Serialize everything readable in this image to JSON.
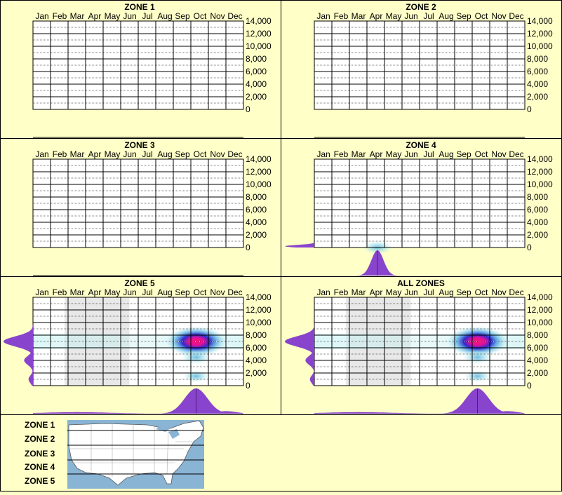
{
  "months": [
    "Jan",
    "Feb",
    "Mar",
    "Apr",
    "May",
    "Jun",
    "Jul",
    "Aug",
    "Sep",
    "Oct",
    "Nov",
    "Dec"
  ],
  "y_ticks": [
    "14,000",
    "12,000",
    "10,000",
    "8,000",
    "6,000",
    "4,000",
    "2,000",
    "0"
  ],
  "colors": {
    "background": "#ffffc8",
    "grid": "#000000",
    "density": "#8844cc",
    "heat_low": "#bfeff0",
    "heat_mid": "#2222cc",
    "heat_high": "#ff1177",
    "shaded_months": "#e8e8e8",
    "map_water": "#8ab4d4",
    "map_land": "#ffffff"
  },
  "legend": {
    "zone_labels": [
      "ZONE 1",
      "ZONE 2",
      "ZONE 3",
      "ZONE 4",
      "ZONE 5"
    ],
    "map_icon": "usa-zone-map"
  },
  "chart_data": [
    {
      "type": "heatmap",
      "title": "ZONE 1",
      "x_categories": [
        "Jan",
        "Feb",
        "Mar",
        "Apr",
        "May",
        "Jun",
        "Jul",
        "Aug",
        "Sep",
        "Oct",
        "Nov",
        "Dec"
      ],
      "ylim": [
        0,
        14000
      ],
      "hotspots": [],
      "shaded_months": [],
      "month_density": [],
      "elevation_density": []
    },
    {
      "type": "heatmap",
      "title": "ZONE 2",
      "x_categories": [
        "Jan",
        "Feb",
        "Mar",
        "Apr",
        "May",
        "Jun",
        "Jul",
        "Aug",
        "Sep",
        "Oct",
        "Nov",
        "Dec"
      ],
      "ylim": [
        0,
        14000
      ],
      "hotspots": [],
      "shaded_months": [],
      "month_density": [],
      "elevation_density": []
    },
    {
      "type": "heatmap",
      "title": "ZONE 3",
      "x_categories": [
        "Jan",
        "Feb",
        "Mar",
        "Apr",
        "May",
        "Jun",
        "Jul",
        "Aug",
        "Sep",
        "Oct",
        "Nov",
        "Dec"
      ],
      "ylim": [
        0,
        14000
      ],
      "hotspots": [],
      "shaded_months": [],
      "month_density": [],
      "elevation_density": []
    },
    {
      "type": "heatmap",
      "title": "ZONE 4",
      "x_categories": [
        "Jan",
        "Feb",
        "Mar",
        "Apr",
        "May",
        "Jun",
        "Jul",
        "Aug",
        "Sep",
        "Oct",
        "Nov",
        "Dec"
      ],
      "ylim": [
        0,
        14000
      ],
      "hotspots": [
        {
          "month": 4.1,
          "elev": 0,
          "intensity": 0.35
        }
      ],
      "shaded_months": [],
      "month_density": [
        {
          "month": 4.1,
          "value": 1.0,
          "spread": 0.35
        }
      ],
      "elevation_density": [
        {
          "elev": 200,
          "value": 1.0,
          "spread": 200
        }
      ]
    },
    {
      "type": "heatmap",
      "title": "ZONE 5",
      "x_categories": [
        "Jan",
        "Feb",
        "Mar",
        "Apr",
        "May",
        "Jun",
        "Jul",
        "Aug",
        "Sep",
        "Oct",
        "Nov",
        "Dec"
      ],
      "ylim": [
        0,
        14000
      ],
      "hotspots": [
        {
          "month": 9.8,
          "elev": 7000,
          "intensity": 1.0
        },
        {
          "month": 9.8,
          "elev": 4500,
          "intensity": 0.35
        },
        {
          "month": 9.8,
          "elev": 1500,
          "intensity": 0.25
        }
      ],
      "shaded_months": [
        [
          2.3,
          6.0
        ]
      ],
      "month_density": [
        {
          "month": 9.8,
          "value": 1.0,
          "spread": 0.65
        },
        {
          "month": 3.0,
          "value": 0.06,
          "spread": 2.0
        },
        {
          "month": 11.5,
          "value": 0.1,
          "spread": 0.6
        }
      ],
      "elevation_density": [
        {
          "elev": 7000,
          "value": 1.0,
          "spread": 800
        },
        {
          "elev": 4000,
          "value": 0.3,
          "spread": 700
        },
        {
          "elev": 1000,
          "value": 0.15,
          "spread": 600
        }
      ]
    },
    {
      "type": "heatmap",
      "title": "ALL ZONES",
      "x_categories": [
        "Jan",
        "Feb",
        "Mar",
        "Apr",
        "May",
        "Jun",
        "Jul",
        "Aug",
        "Sep",
        "Oct",
        "Nov",
        "Dec"
      ],
      "ylim": [
        0,
        14000
      ],
      "hotspots": [
        {
          "month": 9.8,
          "elev": 7000,
          "intensity": 1.0
        },
        {
          "month": 9.8,
          "elev": 4500,
          "intensity": 0.35
        },
        {
          "month": 9.8,
          "elev": 1500,
          "intensity": 0.25
        }
      ],
      "shaded_months": [
        [
          2.3,
          6.0
        ]
      ],
      "month_density": [
        {
          "month": 9.8,
          "value": 1.0,
          "spread": 0.65
        },
        {
          "month": 3.0,
          "value": 0.06,
          "spread": 2.0
        },
        {
          "month": 11.5,
          "value": 0.1,
          "spread": 0.6
        }
      ],
      "elevation_density": [
        {
          "elev": 7000,
          "value": 1.0,
          "spread": 800
        },
        {
          "elev": 4000,
          "value": 0.3,
          "spread": 700
        },
        {
          "elev": 1000,
          "value": 0.15,
          "spread": 600
        }
      ]
    }
  ]
}
